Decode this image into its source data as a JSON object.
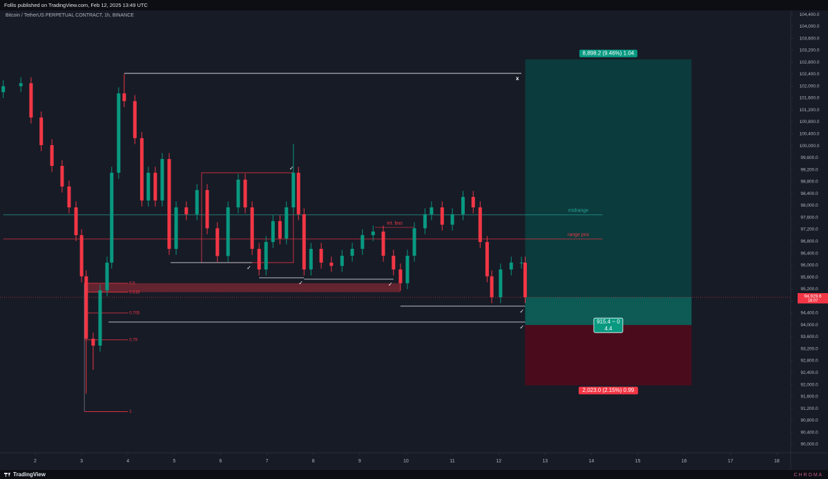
{
  "header": {
    "publisher": "Follis published on TradingView.com, Feb 12, 2025 13:49 UTC"
  },
  "footer": {
    "brand": "TradingView",
    "watermark": "C H R O M A"
  },
  "chart_data": {
    "type": "candlestick",
    "subtitle": "Bitcoin / TetherUS PERPETUAL CONTRACT, 1h, BINANCE",
    "up_color": "#089981",
    "down_color": "#f23645",
    "x": [
      1.31,
      1.69,
      1.91,
      2.13,
      2.36,
      2.58,
      2.73,
      2.88,
      3.0,
      3.1,
      3.25,
      3.4,
      3.55,
      3.65,
      3.8,
      3.92,
      4.15,
      4.3,
      4.44,
      4.59,
      4.74,
      4.89,
      5.04,
      5.26,
      5.49,
      5.71,
      5.93,
      6.16,
      6.38,
      6.53,
      6.68,
      6.83,
      6.98,
      7.13,
      7.28,
      7.42,
      7.57,
      7.68,
      7.8,
      7.95,
      8.17,
      8.39,
      8.62,
      8.84,
      9.06,
      9.29,
      9.51,
      9.73,
      9.88,
      10.03,
      10.18,
      10.41,
      10.55,
      10.78,
      11.0,
      11.23,
      11.45,
      11.6,
      11.75,
      11.85,
      12.04,
      12.27,
      12.49,
      12.57
    ],
    "open": [
      101800,
      102000,
      102100,
      100950,
      100025,
      99330,
      98640,
      97940,
      97010,
      95630,
      93540,
      93310,
      95160,
      96090,
      99100,
      101760,
      101500,
      100260,
      98170,
      99100,
      98170,
      99560,
      96550,
      97940,
      97710,
      98520,
      97240,
      96310,
      97940,
      98870,
      97940,
      96550,
      95860,
      96780,
      97480,
      96900,
      97940,
      99100,
      97710,
      95860,
      96550,
      96090,
      95980,
      96320,
      96550,
      97010,
      97130,
      96320,
      95860,
      95400,
      96320,
      97240,
      97710,
      97940,
      97360,
      97710,
      98290,
      97940,
      96780,
      95630,
      94930,
      95860,
      96090,
      96090
    ],
    "high": [
      102200,
      102300,
      102300,
      101150,
      100225,
      99530,
      98840,
      98140,
      97210,
      95830,
      93740,
      95360,
      96290,
      99300,
      101960,
      102410,
      101700,
      100460,
      99300,
      99300,
      99760,
      99760,
      98140,
      98140,
      98720,
      98720,
      97440,
      98140,
      99070,
      99070,
      98140,
      96750,
      96980,
      97680,
      97680,
      98140,
      100070,
      99300,
      97910,
      96750,
      96750,
      96290,
      96520,
      96750,
      97210,
      97330,
      97330,
      96520,
      96060,
      96520,
      97440,
      97910,
      98140,
      98140,
      97910,
      98490,
      98490,
      98140,
      96980,
      95830,
      96060,
      96290,
      96290,
      96290
    ],
    "low": [
      101600,
      101800,
      100750,
      99825,
      99130,
      98440,
      97740,
      96810,
      95430,
      91700,
      92500,
      93110,
      94960,
      95890,
      98900,
      101300,
      100060,
      97970,
      97970,
      97970,
      97970,
      96350,
      96350,
      97510,
      97510,
      97040,
      96110,
      96110,
      97740,
      97740,
      96350,
      95660,
      95660,
      96580,
      96700,
      96700,
      97740,
      97510,
      95660,
      95660,
      95890,
      95780,
      95780,
      96120,
      96350,
      96810,
      96120,
      95660,
      95150,
      95200,
      96120,
      97040,
      97510,
      97160,
      97160,
      97510,
      97740,
      96580,
      95430,
      94730,
      94730,
      95660,
      95890,
      94730
    ],
    "close": [
      102000,
      102100,
      100950,
      100025,
      99330,
      98640,
      97940,
      97010,
      95630,
      93540,
      93310,
      95160,
      96090,
      99100,
      101760,
      101500,
      100260,
      98170,
      99100,
      98170,
      99560,
      96550,
      97940,
      97710,
      98520,
      97240,
      96310,
      97940,
      98870,
      97940,
      96550,
      95860,
      96780,
      97480,
      96900,
      97940,
      99100,
      97710,
      95860,
      96550,
      96090,
      95980,
      96320,
      96550,
      97010,
      97130,
      96320,
      95860,
      95400,
      96320,
      97240,
      97710,
      97940,
      97360,
      97710,
      98290,
      97940,
      96780,
      95630,
      94930,
      95860,
      96090,
      96090,
      94930
    ],
    "xlim": [
      1.24,
      18.3
    ],
    "ylim": [
      89790,
      104540
    ],
    "xticks": [
      2,
      3,
      4,
      5,
      6,
      7,
      8,
      9,
      10,
      11,
      12,
      13,
      14,
      15,
      16,
      17,
      18
    ],
    "yticks": [
      {
        "value": 90000,
        "label": "90,000.0"
      },
      {
        "value": 90400,
        "label": "90,400.0"
      },
      {
        "value": 90800,
        "label": "90,800.0"
      },
      {
        "value": 91200,
        "label": "91,200.0"
      },
      {
        "value": 91600,
        "label": "91,600.0"
      },
      {
        "value": 92000,
        "label": "92,000.0"
      },
      {
        "value": 92400,
        "label": "92,400.0"
      },
      {
        "value": 92800,
        "label": "92,800.0"
      },
      {
        "value": 93200,
        "label": "93,200.0"
      },
      {
        "value": 93600,
        "label": "93,600.0"
      },
      {
        "value": 94000,
        "label": "94,000.0"
      },
      {
        "value": 94400,
        "label": "94,400.0"
      },
      {
        "value": 94800,
        "label": "94,800.0"
      },
      {
        "value": 95200,
        "label": "95,200.0"
      },
      {
        "value": 95600,
        "label": "95,600.0"
      },
      {
        "value": 96000,
        "label": "96,000.0"
      },
      {
        "value": 96400,
        "label": "96,400.0"
      },
      {
        "value": 96800,
        "label": "96,800.0"
      },
      {
        "value": 97200,
        "label": "97,200.0"
      },
      {
        "value": 97600,
        "label": "97,600.0"
      },
      {
        "value": 98000,
        "label": "98,000.0"
      },
      {
        "value": 98400,
        "label": "98,400.0"
      },
      {
        "value": 98800,
        "label": "98,800.0"
      },
      {
        "value": 99200,
        "label": "99,200.0"
      },
      {
        "value": 99600,
        "label": "99,600.0"
      },
      {
        "value": 100000,
        "label": "100,000.0"
      },
      {
        "value": 100400,
        "label": "100,400.0"
      },
      {
        "value": 100800,
        "label": "100,800.0"
      },
      {
        "value": 101200,
        "label": "101,200.0"
      },
      {
        "value": 101600,
        "label": "101,600.0"
      },
      {
        "value": 102000,
        "label": "102,000.0"
      },
      {
        "value": 102400,
        "label": "102,400.0"
      },
      {
        "value": 102800,
        "label": "102,800.0"
      },
      {
        "value": 103200,
        "label": "103,200.0"
      },
      {
        "value": 103600,
        "label": "103,600.0"
      },
      {
        "value": 104000,
        "label": "104,000.0"
      },
      {
        "value": 104400,
        "label": "104,400.0"
      }
    ],
    "last_price": {
      "value": 94929.6,
      "label": "94,929.6",
      "countdown": "18:07",
      "color": "#f23645"
    },
    "levels": [
      {
        "name": "midrange",
        "value": 97690,
        "x": [
          1.31,
          14.24
        ],
        "color": "#26a69a"
      },
      {
        "name": "range pos",
        "value": 96880,
        "x": [
          1.31,
          14.24
        ],
        "color": "#f23645"
      },
      {
        "name": "int. bos",
        "value": 97270,
        "x": [
          9.33,
          10.18
        ],
        "color": "#f23645"
      }
    ],
    "lines": [
      {
        "value": 102430,
        "x": [
          3.92,
          12.49
        ],
        "marker": "x"
      },
      {
        "value": 94098,
        "x": [
          3.58,
          12.57
        ],
        "marker": "✓"
      },
      {
        "value": 94630,
        "x": [
          9.88,
          12.57
        ],
        "marker": "✓"
      },
      {
        "value": 96090,
        "x": [
          4.92,
          6.68
        ],
        "marker": "✓"
      },
      {
        "value": 95580,
        "x": [
          6.83,
          7.8
        ],
        "marker": "✓"
      },
      {
        "value": 95534,
        "x": [
          7.8,
          9.73
        ],
        "marker": "✓"
      }
    ],
    "box": {
      "x": [
        5.59,
        7.57
      ],
      "y": [
        96090,
        99100
      ],
      "marker": "✓",
      "color": "#f23645"
    },
    "zone": {
      "x": [
        3.06,
        9.88
      ],
      "y": [
        95100,
        95400
      ],
      "color": "#f23645"
    },
    "fib": {
      "x": [
        3.06,
        4.0
      ],
      "color": "#f23645",
      "levels": [
        {
          "label": "0.5",
          "value": 95400
        },
        {
          "label": "0.618",
          "value": 95100
        },
        {
          "label": "0.705",
          "value": 94400
        },
        {
          "label": "0.79",
          "value": 93500
        },
        {
          "label": "1",
          "value": 91100
        }
      ]
    },
    "position": {
      "x": [
        12.57,
        16.16
      ],
      "entry": 94000,
      "target": 102898.2,
      "stop": 91977,
      "target_label": "8,898.2 (9.46%) 1.04",
      "center_label": [
        "915.4 ~ 0",
        "4.4"
      ],
      "stop_label": "2,023.0 (2.15%) 0.99"
    }
  }
}
